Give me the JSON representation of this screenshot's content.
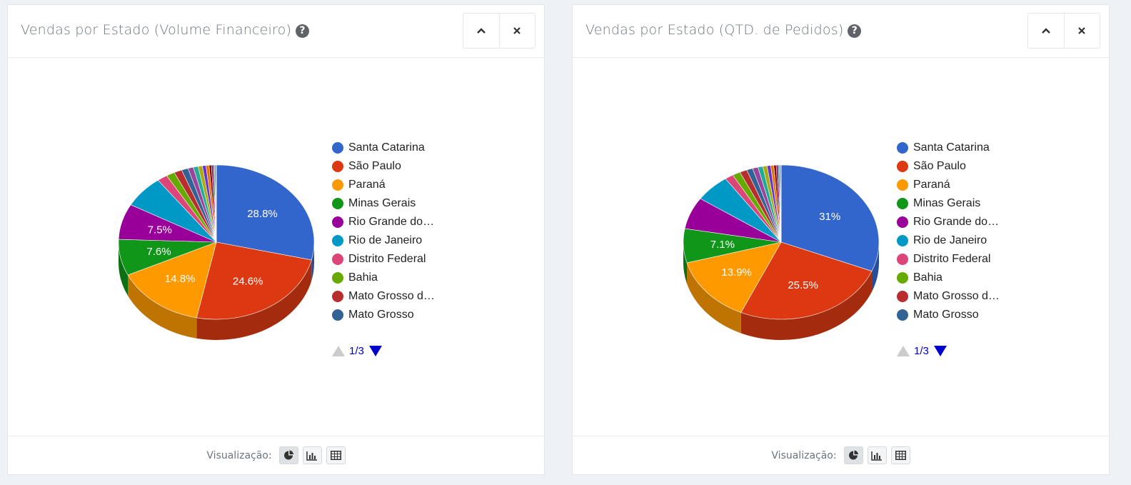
{
  "panels": [
    {
      "title": "Vendas por Estado (Volume Financeiro)",
      "pager": "1/3",
      "visualization_label": "Visualização:",
      "active_view": "pie"
    },
    {
      "title": "Vendas por Estado (QTD. de Pedidos)",
      "pager": "1/3",
      "visualization_label": "Visualização:",
      "active_view": "pie"
    }
  ],
  "chart_data": [
    {
      "type": "pie",
      "title": "Vendas por Estado (Volume Financeiro)",
      "legend_position": "right",
      "legend": [
        "Santa Catarina",
        "São Paulo",
        "Paraná",
        "Minas Gerais",
        "Rio Grande do…",
        "Rio de Janeiro",
        "Distrito Federal",
        "Bahia",
        "Mato Grosso d…",
        "Mato Grosso"
      ],
      "slices": [
        {
          "label": "Santa Catarina",
          "value": 28.8,
          "show_label": true,
          "color": "#3366cc"
        },
        {
          "label": "São Paulo",
          "value": 24.6,
          "show_label": true,
          "color": "#dc3912"
        },
        {
          "label": "Paraná",
          "value": 14.8,
          "show_label": true,
          "color": "#ff9900"
        },
        {
          "label": "Minas Gerais",
          "value": 7.6,
          "show_label": true,
          "color": "#109618"
        },
        {
          "label": "Rio Grande do…",
          "value": 7.5,
          "show_label": true,
          "color": "#990099"
        },
        {
          "label": "Rio de Janeiro",
          "value": 6.8,
          "show_label": false,
          "color": "#0099c6"
        },
        {
          "label": "Distrito Federal",
          "value": 1.7,
          "show_label": false,
          "color": "#dd4477"
        },
        {
          "label": "Bahia",
          "value": 1.4,
          "show_label": false,
          "color": "#66aa00"
        },
        {
          "label": "Mato Grosso d…",
          "value": 1.3,
          "show_label": false,
          "color": "#b82e2e"
        },
        {
          "label": "Mato Grosso",
          "value": 1.1,
          "show_label": false,
          "color": "#316395"
        },
        {
          "label": "",
          "value": 0.9,
          "show_label": false,
          "color": "#994499"
        },
        {
          "label": "",
          "value": 0.8,
          "show_label": false,
          "color": "#22aa99"
        },
        {
          "label": "",
          "value": 0.7,
          "show_label": false,
          "color": "#aaaa11"
        },
        {
          "label": "",
          "value": 0.6,
          "show_label": false,
          "color": "#6633cc"
        },
        {
          "label": "",
          "value": 0.5,
          "show_label": false,
          "color": "#e67300"
        },
        {
          "label": "",
          "value": 0.4,
          "show_label": false,
          "color": "#8b0707"
        },
        {
          "label": "",
          "value": 0.3,
          "show_label": false,
          "color": "#651067"
        },
        {
          "label": "",
          "value": 0.2,
          "show_label": false,
          "color": "#329262"
        },
        {
          "label": "",
          "value": 0.2,
          "show_label": false,
          "color": "#5574a6"
        },
        {
          "label": "",
          "value": 0.1,
          "show_label": false,
          "color": "#3b3eac"
        }
      ]
    },
    {
      "type": "pie",
      "title": "Vendas por Estado (QTD. de Pedidos)",
      "legend_position": "right",
      "legend": [
        "Santa Catarina",
        "São Paulo",
        "Paraná",
        "Minas Gerais",
        "Rio Grande do…",
        "Rio de Janeiro",
        "Distrito Federal",
        "Bahia",
        "Mato Grosso d…",
        "Mato Grosso"
      ],
      "slices": [
        {
          "label": "Santa Catarina",
          "value": 31,
          "show_label": true,
          "color": "#3366cc"
        },
        {
          "label": "São Paulo",
          "value": 25.5,
          "show_label": true,
          "color": "#dc3912"
        },
        {
          "label": "Paraná",
          "value": 13.9,
          "show_label": true,
          "color": "#ff9900"
        },
        {
          "label": "Minas Gerais",
          "value": 7.1,
          "show_label": true,
          "color": "#109618"
        },
        {
          "label": "Rio Grande do…",
          "value": 6.7,
          "show_label": false,
          "color": "#990099"
        },
        {
          "label": "Rio de Janeiro",
          "value": 5.8,
          "show_label": false,
          "color": "#0099c6"
        },
        {
          "label": "Distrito Federal",
          "value": 1.4,
          "show_label": false,
          "color": "#dd4477"
        },
        {
          "label": "Bahia",
          "value": 1.3,
          "show_label": false,
          "color": "#66aa00"
        },
        {
          "label": "Mato Grosso d…",
          "value": 1.2,
          "show_label": false,
          "color": "#b82e2e"
        },
        {
          "label": "Mato Grosso",
          "value": 1.0,
          "show_label": false,
          "color": "#316395"
        },
        {
          "label": "",
          "value": 0.9,
          "show_label": false,
          "color": "#994499"
        },
        {
          "label": "",
          "value": 0.8,
          "show_label": false,
          "color": "#22aa99"
        },
        {
          "label": "",
          "value": 0.7,
          "show_label": false,
          "color": "#aaaa11"
        },
        {
          "label": "",
          "value": 0.6,
          "show_label": false,
          "color": "#6633cc"
        },
        {
          "label": "",
          "value": 0.5,
          "show_label": false,
          "color": "#e67300"
        },
        {
          "label": "",
          "value": 0.4,
          "show_label": false,
          "color": "#8b0707"
        },
        {
          "label": "",
          "value": 0.3,
          "show_label": false,
          "color": "#651067"
        },
        {
          "label": "",
          "value": 0.2,
          "show_label": false,
          "color": "#329262"
        },
        {
          "label": "",
          "value": 0.2,
          "show_label": false,
          "color": "#5574a6"
        },
        {
          "label": "",
          "value": 0.1,
          "show_label": false,
          "color": "#3b3eac"
        }
      ]
    }
  ]
}
